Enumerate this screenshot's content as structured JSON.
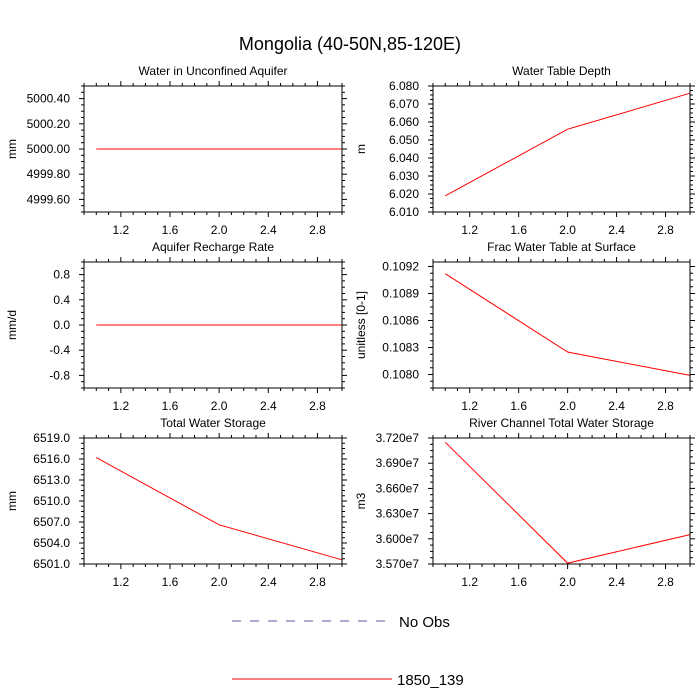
{
  "title": "Mongolia (40-50N,85-120E)",
  "colors": {
    "series": "#ff0000",
    "no_obs": "#5a5aa0",
    "frame": "#000000"
  },
  "legend": [
    {
      "label": "No Obs",
      "color": "#5a5aa0",
      "style": "dashed"
    },
    {
      "label": "1850_139",
      "color": "#ff0000",
      "style": "solid"
    }
  ],
  "chart_data": [
    {
      "type": "line",
      "title": "Water in Unconfined Aquifer",
      "ylabel": "mm",
      "xlim": [
        0.9,
        3.0
      ],
      "ylim": [
        4999.5,
        5000.5
      ],
      "xticks": [
        1.2,
        1.6,
        2.0,
        2.4,
        2.8
      ],
      "xtick_labels": [
        "1.2",
        "1.6",
        "2.0",
        "2.4",
        "2.8"
      ],
      "yticks": [
        4999.6,
        4999.8,
        5000.0,
        5000.2,
        5000.4
      ],
      "ytick_labels": [
        "4999.60",
        "4999.80",
        "5000.00",
        "5000.20",
        "5000.40"
      ],
      "series": [
        {
          "x": [
            1,
            2,
            3
          ],
          "values": [
            5000.0,
            5000.0,
            5000.0
          ]
        }
      ]
    },
    {
      "type": "line",
      "title": "Water Table Depth",
      "ylabel": "m",
      "xlim": [
        0.9,
        3.0
      ],
      "ylim": [
        6.01,
        6.08
      ],
      "xticks": [
        1.2,
        1.6,
        2.0,
        2.4,
        2.8
      ],
      "xtick_labels": [
        "1.2",
        "1.6",
        "2.0",
        "2.4",
        "2.8"
      ],
      "yticks": [
        6.01,
        6.02,
        6.03,
        6.04,
        6.05,
        6.06,
        6.07,
        6.08
      ],
      "ytick_labels": [
        "6.010",
        "6.020",
        "6.030",
        "6.040",
        "6.050",
        "6.060",
        "6.070",
        "6.080"
      ],
      "series": [
        {
          "x": [
            1,
            2,
            3
          ],
          "values": [
            6.019,
            6.056,
            6.076
          ]
        }
      ]
    },
    {
      "type": "line",
      "title": "Aquifer Recharge Rate",
      "ylabel": "mm/d",
      "xlim": [
        0.9,
        3.0
      ],
      "ylim": [
        -1.0,
        1.0
      ],
      "xticks": [
        1.2,
        1.6,
        2.0,
        2.4,
        2.8
      ],
      "xtick_labels": [
        "1.2",
        "1.6",
        "2.0",
        "2.4",
        "2.8"
      ],
      "yticks": [
        -0.8,
        -0.4,
        0.0,
        0.4,
        0.8
      ],
      "ytick_labels": [
        "-0.8",
        "-0.4",
        "0.0",
        "0.4",
        "0.8"
      ],
      "series": [
        {
          "x": [
            1,
            2,
            3
          ],
          "values": [
            0.0,
            0.0,
            0.0
          ]
        }
      ]
    },
    {
      "type": "line",
      "title": "Frac Water Table at Surface",
      "ylabel": "unitless [0-1]",
      "xlim": [
        0.9,
        3.0
      ],
      "ylim": [
        0.10785,
        0.10925
      ],
      "xticks": [
        1.2,
        1.6,
        2.0,
        2.4,
        2.8
      ],
      "xtick_labels": [
        "1.2",
        "1.6",
        "2.0",
        "2.4",
        "2.8"
      ],
      "yticks": [
        0.108,
        0.1083,
        0.1086,
        0.1089,
        0.1092
      ],
      "ytick_labels": [
        "0.1080",
        "0.1083",
        "0.1086",
        "0.1089",
        "0.1092"
      ],
      "series": [
        {
          "x": [
            1,
            2,
            3
          ],
          "values": [
            0.10912,
            0.10825,
            0.10799
          ]
        }
      ]
    },
    {
      "type": "line",
      "title": "Total Water Storage",
      "ylabel": "mm",
      "xlim": [
        0.9,
        3.0
      ],
      "ylim": [
        6501.0,
        6519.0
      ],
      "xticks": [
        1.2,
        1.6,
        2.0,
        2.4,
        2.8
      ],
      "xtick_labels": [
        "1.2",
        "1.6",
        "2.0",
        "2.4",
        "2.8"
      ],
      "yticks": [
        6501.0,
        6504.0,
        6507.0,
        6510.0,
        6513.0,
        6516.0,
        6519.0
      ],
      "ytick_labels": [
        "6501.0",
        "6504.0",
        "6507.0",
        "6510.0",
        "6513.0",
        "6516.0",
        "6519.0"
      ],
      "series": [
        {
          "x": [
            1,
            2,
            3
          ],
          "values": [
            6516.2,
            6506.6,
            6501.6
          ]
        }
      ]
    },
    {
      "type": "line",
      "title": "River Channel Total Water Storage",
      "ylabel": "m3",
      "xlim": [
        0.9,
        3.0
      ],
      "ylim": [
        35700000,
        37200000
      ],
      "xticks": [
        1.2,
        1.6,
        2.0,
        2.4,
        2.8
      ],
      "xtick_labels": [
        "1.2",
        "1.6",
        "2.0",
        "2.4",
        "2.8"
      ],
      "yticks": [
        35700000,
        36000000,
        36300000,
        36600000,
        36900000,
        37200000
      ],
      "ytick_labels": [
        "3.570e7",
        "3.600e7",
        "3.630e7",
        "3.660e7",
        "3.690e7",
        "3.720e7"
      ],
      "series": [
        {
          "x": [
            1,
            2,
            3
          ],
          "values": [
            37150000,
            35710000,
            36050000
          ]
        }
      ]
    }
  ]
}
